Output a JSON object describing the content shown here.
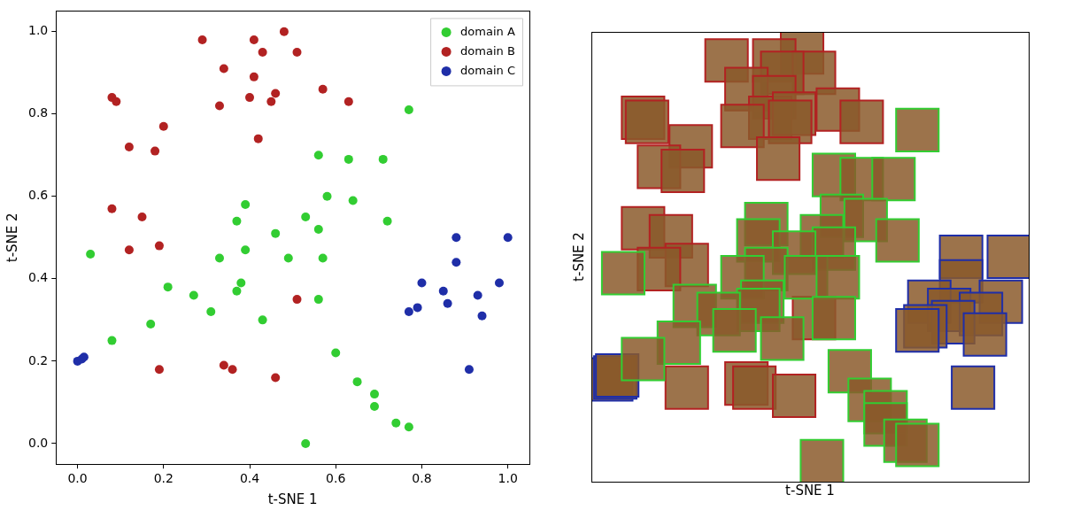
{
  "chart_data": [
    {
      "type": "scatter",
      "xlabel": "t-SNE 1",
      "ylabel": "t-SNE 2",
      "xlim": [
        -0.05,
        1.05
      ],
      "ylim": [
        -0.05,
        1.05
      ],
      "xticks": [
        {
          "value": 0,
          "label": "0.0"
        },
        0.2,
        0.4,
        0.6,
        0.8,
        {
          "value": 1,
          "label": "1.0"
        }
      ],
      "yticks": [
        {
          "value": 0,
          "label": "0.0"
        },
        0.2,
        0.4,
        0.6,
        0.8,
        {
          "value": 1,
          "label": "1.0"
        }
      ],
      "grid": false,
      "legend": "upper right",
      "marker": "circle",
      "series": [
        {
          "name": "domain A",
          "color": "#32cd32",
          "x": [
            0.77,
            0.56,
            0.63,
            0.71,
            0.58,
            0.39,
            0.64,
            0.37,
            0.72,
            0.53,
            0.56,
            0.46,
            0.03,
            0.39,
            0.33,
            0.49,
            0.57,
            0.21,
            0.38,
            0.37,
            0.27,
            0.56,
            0.31,
            0.43,
            0.17,
            0.08,
            0.6,
            0.65,
            0.69,
            0.69,
            0.74,
            0.77,
            0.53
          ],
          "values": [
            0.81,
            0.7,
            0.69,
            0.69,
            0.6,
            0.58,
            0.59,
            0.54,
            0.54,
            0.55,
            0.52,
            0.51,
            0.46,
            0.47,
            0.45,
            0.45,
            0.45,
            0.38,
            0.39,
            0.37,
            0.36,
            0.35,
            0.32,
            0.3,
            0.29,
            0.25,
            0.22,
            0.15,
            0.12,
            0.09,
            0.05,
            0.04,
            0.0
          ]
        },
        {
          "name": "domain B",
          "color": "#b22222",
          "x": [
            0.29,
            0.48,
            0.41,
            0.51,
            0.43,
            0.34,
            0.41,
            0.08,
            0.09,
            0.4,
            0.46,
            0.57,
            0.45,
            0.33,
            0.63,
            0.2,
            0.42,
            0.12,
            0.18,
            0.08,
            0.15,
            0.19,
            0.12,
            0.51,
            0.34,
            0.19,
            0.36,
            0.46
          ],
          "values": [
            0.98,
            1.0,
            0.98,
            0.95,
            0.95,
            0.91,
            0.89,
            0.84,
            0.83,
            0.84,
            0.85,
            0.86,
            0.83,
            0.82,
            0.83,
            0.77,
            0.74,
            0.72,
            0.71,
            0.57,
            0.55,
            0.48,
            0.47,
            0.35,
            0.19,
            0.18,
            0.18,
            0.16
          ]
        },
        {
          "name": "domain C",
          "color": "#1f2ea8",
          "x": [
            0.0,
            0.01,
            0.015,
            0.88,
            1.0,
            0.88,
            0.8,
            0.85,
            0.98,
            0.93,
            0.86,
            0.79,
            0.77,
            0.94,
            0.91
          ],
          "values": [
            0.2,
            0.205,
            0.21,
            0.5,
            0.5,
            0.44,
            0.39,
            0.37,
            0.39,
            0.36,
            0.34,
            0.33,
            0.32,
            0.31,
            0.18
          ]
        }
      ]
    },
    {
      "type": "scatter",
      "xlabel": "t-SNE 1",
      "ylabel": "t-SNE 2",
      "xlim": [
        -0.05,
        1.05
      ],
      "ylim": [
        -0.05,
        1.05
      ],
      "grid": false,
      "tick_labels": false,
      "marker": "square",
      "series": [
        {
          "color": "#32cd32",
          "x": [
            0.77,
            0.56,
            0.63,
            0.71,
            0.58,
            0.39,
            0.64,
            0.37,
            0.72,
            0.53,
            0.56,
            0.46,
            0.03,
            0.39,
            0.33,
            0.49,
            0.57,
            0.21,
            0.38,
            0.37,
            0.27,
            0.56,
            0.31,
            0.43,
            0.17,
            0.08,
            0.6,
            0.65,
            0.69,
            0.69,
            0.74,
            0.77,
            0.53
          ],
          "values": [
            0.81,
            0.7,
            0.69,
            0.69,
            0.6,
            0.58,
            0.59,
            0.54,
            0.54,
            0.55,
            0.52,
            0.51,
            0.46,
            0.47,
            0.45,
            0.45,
            0.45,
            0.38,
            0.39,
            0.37,
            0.36,
            0.35,
            0.32,
            0.3,
            0.29,
            0.25,
            0.22,
            0.15,
            0.12,
            0.09,
            0.05,
            0.04,
            0.0
          ]
        },
        {
          "color": "#b22222",
          "x": [
            0.29,
            0.48,
            0.41,
            0.51,
            0.43,
            0.34,
            0.41,
            0.08,
            0.09,
            0.4,
            0.46,
            0.57,
            0.45,
            0.33,
            0.63,
            0.2,
            0.42,
            0.12,
            0.18,
            0.08,
            0.15,
            0.19,
            0.12,
            0.51,
            0.34,
            0.19,
            0.36,
            0.46
          ],
          "values": [
            0.98,
            1.0,
            0.98,
            0.95,
            0.95,
            0.91,
            0.89,
            0.84,
            0.83,
            0.84,
            0.85,
            0.86,
            0.83,
            0.82,
            0.83,
            0.77,
            0.74,
            0.72,
            0.71,
            0.57,
            0.55,
            0.48,
            0.47,
            0.35,
            0.19,
            0.18,
            0.18,
            0.16
          ]
        },
        {
          "color": "#1f2ea8",
          "x": [
            0.0,
            0.01,
            0.015,
            0.88,
            1.0,
            0.88,
            0.8,
            0.85,
            0.98,
            0.93,
            0.86,
            0.79,
            0.77,
            0.94,
            0.91
          ],
          "values": [
            0.2,
            0.205,
            0.21,
            0.5,
            0.5,
            0.44,
            0.39,
            0.37,
            0.39,
            0.36,
            0.34,
            0.33,
            0.32,
            0.31,
            0.18
          ]
        }
      ]
    }
  ]
}
